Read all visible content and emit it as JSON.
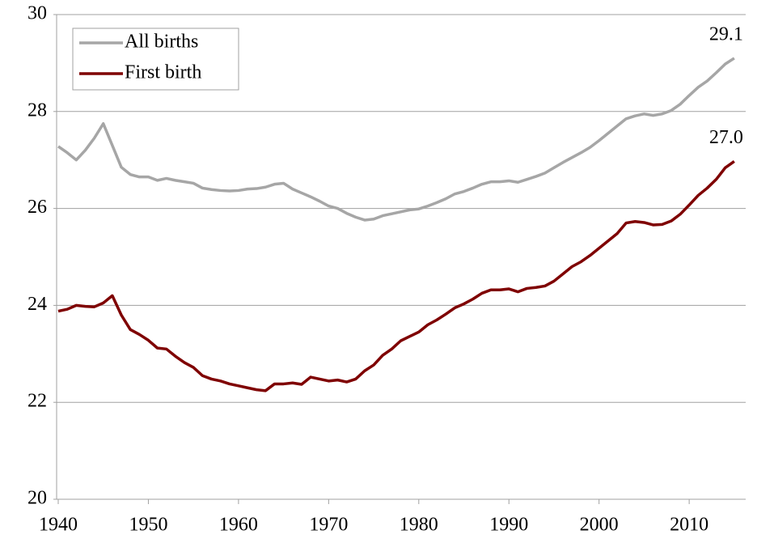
{
  "chart_data": {
    "type": "line",
    "x": [
      1940,
      1941,
      1942,
      1943,
      1944,
      1945,
      1946,
      1947,
      1948,
      1949,
      1950,
      1951,
      1952,
      1953,
      1954,
      1955,
      1956,
      1957,
      1958,
      1959,
      1960,
      1961,
      1962,
      1963,
      1964,
      1965,
      1966,
      1967,
      1968,
      1969,
      1970,
      1971,
      1972,
      1973,
      1974,
      1975,
      1976,
      1977,
      1978,
      1979,
      1980,
      1981,
      1982,
      1983,
      1984,
      1985,
      1986,
      1987,
      1988,
      1989,
      1990,
      1991,
      1992,
      1993,
      1994,
      1995,
      1996,
      1997,
      1998,
      1999,
      2000,
      2001,
      2002,
      2003,
      2004,
      2005,
      2006,
      2007,
      2008,
      2009,
      2010,
      2011,
      2012,
      2013,
      2014,
      2015
    ],
    "series": [
      {
        "name": "All births",
        "color": "#a6a6a6",
        "values": [
          27.28,
          27.15,
          27.0,
          27.2,
          27.45,
          27.75,
          27.3,
          26.85,
          26.7,
          26.65,
          26.65,
          26.58,
          26.62,
          26.58,
          26.55,
          26.52,
          26.42,
          26.39,
          26.37,
          26.36,
          26.37,
          26.4,
          26.41,
          26.44,
          26.5,
          26.52,
          26.4,
          26.32,
          26.24,
          26.15,
          26.05,
          26.0,
          25.9,
          25.82,
          25.76,
          25.78,
          25.85,
          25.89,
          25.93,
          25.97,
          25.99,
          26.05,
          26.12,
          26.2,
          26.3,
          26.35,
          26.42,
          26.5,
          26.55,
          26.55,
          26.57,
          26.54,
          26.6,
          26.66,
          26.73,
          26.84,
          26.95,
          27.05,
          27.15,
          27.26,
          27.4,
          27.55,
          27.7,
          27.85,
          27.91,
          27.95,
          27.92,
          27.95,
          28.02,
          28.15,
          28.33,
          28.5,
          28.63,
          28.8,
          28.98,
          29.1
        ],
        "value_labels": [
          null,
          null,
          null,
          null,
          null,
          null,
          null,
          null,
          null,
          null,
          null,
          null,
          null,
          null,
          null,
          null,
          null,
          null,
          null,
          null,
          null,
          null,
          null,
          null,
          null,
          null,
          null,
          null,
          null,
          null,
          null,
          null,
          null,
          null,
          null,
          null,
          null,
          null,
          null,
          null,
          null,
          null,
          null,
          null,
          null,
          null,
          null,
          null,
          null,
          null,
          null,
          null,
          null,
          null,
          null,
          null,
          null,
          null,
          null,
          null,
          null,
          null,
          null,
          null,
          null,
          null,
          null,
          null,
          null,
          null,
          null,
          null,
          null,
          null,
          null,
          "29.1"
        ]
      },
      {
        "name": "First birth",
        "color": "#7f0000",
        "values": [
          23.88,
          23.92,
          24.0,
          23.98,
          23.97,
          24.05,
          24.2,
          23.8,
          23.5,
          23.4,
          23.28,
          23.12,
          23.1,
          22.95,
          22.82,
          22.72,
          22.55,
          22.48,
          22.44,
          22.38,
          22.34,
          22.3,
          22.26,
          22.24,
          22.38,
          22.38,
          22.4,
          22.37,
          22.52,
          22.48,
          22.44,
          22.46,
          22.42,
          22.48,
          22.65,
          22.77,
          22.97,
          23.1,
          23.27,
          23.36,
          23.45,
          23.6,
          23.7,
          23.82,
          23.95,
          24.03,
          24.13,
          24.25,
          24.32,
          24.32,
          24.34,
          24.28,
          24.35,
          24.37,
          24.4,
          24.5,
          24.65,
          24.8,
          24.9,
          25.03,
          25.18,
          25.33,
          25.48,
          25.7,
          25.73,
          25.71,
          25.66,
          25.67,
          25.74,
          25.88,
          26.07,
          26.27,
          26.42,
          26.6,
          26.84,
          26.97
        ],
        "value_labels": [
          null,
          null,
          null,
          null,
          null,
          null,
          null,
          null,
          null,
          null,
          null,
          null,
          null,
          null,
          null,
          null,
          null,
          null,
          null,
          null,
          null,
          null,
          null,
          null,
          null,
          null,
          null,
          null,
          null,
          null,
          null,
          null,
          null,
          null,
          null,
          null,
          null,
          null,
          null,
          null,
          null,
          null,
          null,
          null,
          null,
          null,
          null,
          null,
          null,
          null,
          null,
          null,
          null,
          null,
          null,
          null,
          null,
          null,
          null,
          null,
          null,
          null,
          null,
          null,
          null,
          null,
          null,
          null,
          null,
          null,
          null,
          null,
          null,
          null,
          null,
          "27.0"
        ]
      }
    ],
    "xlim": [
      1940,
      2016
    ],
    "xticks": [
      1940,
      1950,
      1960,
      1970,
      1980,
      1990,
      2000,
      2010
    ],
    "ylim": [
      20,
      30
    ],
    "yticks": [
      20,
      22,
      24,
      26,
      28,
      30
    ],
    "grid": true,
    "legend": "upper left"
  }
}
